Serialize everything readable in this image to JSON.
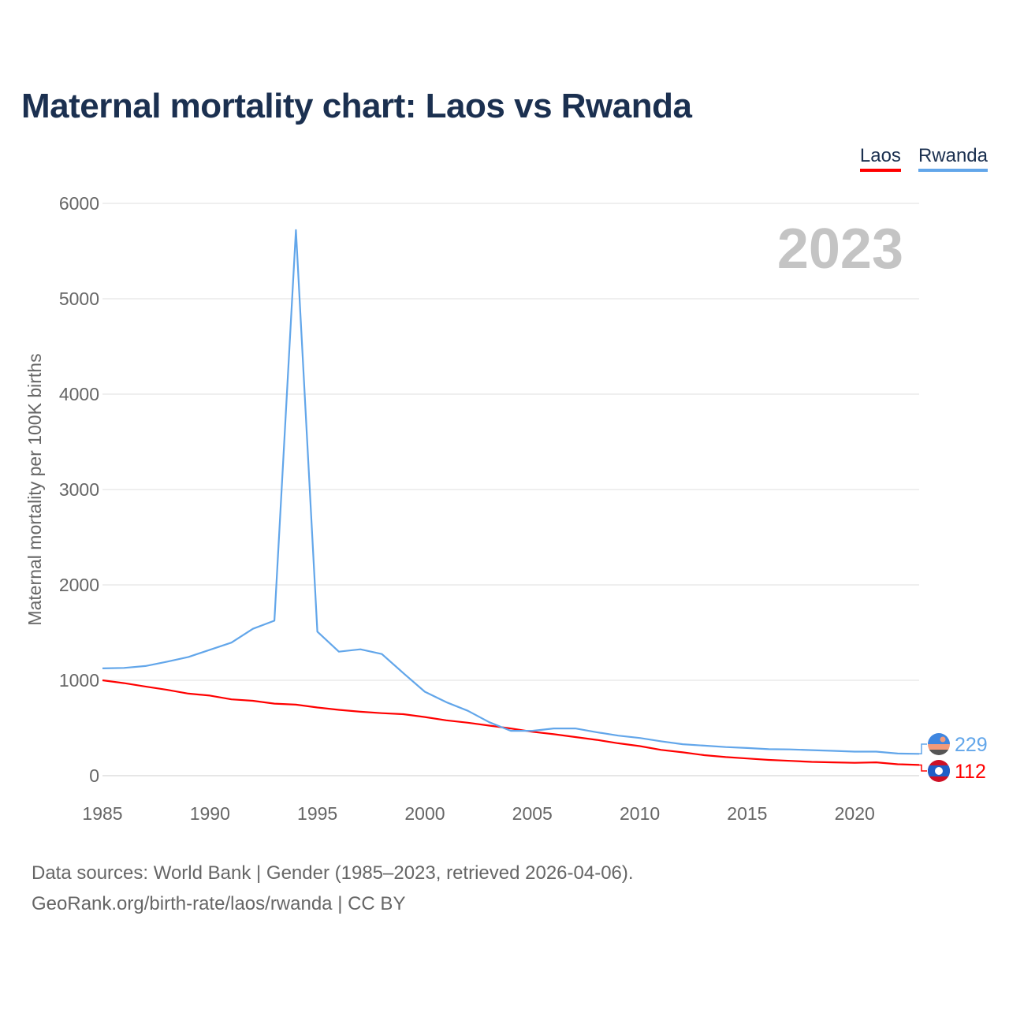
{
  "chart_data": {
    "type": "line",
    "title": "Maternal mortality chart: Laos vs Rwanda",
    "ylabel": "Maternal mortality per 100K births",
    "xlabel": "",
    "year_watermark": "2023",
    "ylim": [
      0,
      6000
    ],
    "xlim": [
      1985,
      2023
    ],
    "yticks": [
      0,
      1000,
      2000,
      3000,
      4000,
      5000,
      6000
    ],
    "xticks": [
      1985,
      1990,
      1995,
      2000,
      2005,
      2010,
      2015,
      2020
    ],
    "grid": true,
    "legend_position": "top-right",
    "x": [
      1985,
      1986,
      1987,
      1988,
      1989,
      1990,
      1991,
      1992,
      1993,
      1994,
      1995,
      1996,
      1997,
      1998,
      1999,
      2000,
      2001,
      2002,
      2003,
      2004,
      2005,
      2006,
      2007,
      2008,
      2009,
      2010,
      2011,
      2012,
      2013,
      2014,
      2015,
      2016,
      2017,
      2018,
      2019,
      2020,
      2021,
      2022,
      2023
    ],
    "series": [
      {
        "name": "Laos",
        "color": "#ff0000",
        "end_label": "112",
        "values": [
          1000,
          970,
          935,
          900,
          860,
          840,
          800,
          785,
          755,
          745,
          715,
          690,
          670,
          655,
          645,
          615,
          580,
          555,
          525,
          495,
          460,
          435,
          405,
          375,
          340,
          310,
          270,
          245,
          215,
          195,
          180,
          165,
          155,
          145,
          140,
          135,
          140,
          120,
          112
        ]
      },
      {
        "name": "Rwanda",
        "color": "#62a6ea",
        "end_label": "229",
        "values": [
          1125,
          1130,
          1150,
          1195,
          1245,
          1320,
          1395,
          1540,
          1625,
          5720,
          1510,
          1300,
          1325,
          1275,
          1075,
          880,
          770,
          680,
          560,
          470,
          470,
          495,
          495,
          455,
          420,
          395,
          360,
          330,
          315,
          300,
          290,
          278,
          275,
          268,
          260,
          252,
          252,
          232,
          229
        ]
      }
    ]
  },
  "footer": {
    "line1": "Data sources: World Bank | Gender (1985–2023, retrieved 2026-04-06).",
    "line2": "GeoRank.org/birth-rate/laos/rwanda | CC BY"
  }
}
